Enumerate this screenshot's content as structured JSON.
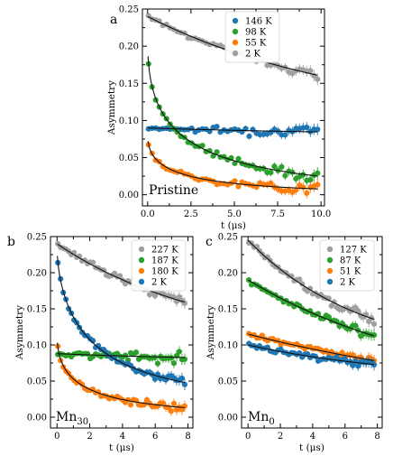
{
  "chart_data": [
    {
      "type": "scatter",
      "panel": "a",
      "annotation": "Pristine",
      "xlabel": "t (μs)",
      "ylabel": "Asymmetry",
      "xlim": [
        -0.3,
        10.2
      ],
      "ylim": [
        -0.015,
        0.25
      ],
      "xticks": [
        0.0,
        2.5,
        5.0,
        7.5,
        10.0
      ],
      "xtick_labels": [
        "0.0",
        "2.5",
        "5.0",
        "7.5",
        "10.0"
      ],
      "yticks": [
        0.0,
        0.05,
        0.1,
        0.15,
        0.2,
        0.25
      ],
      "ytick_labels": [
        "0.00",
        "0.05",
        "0.10",
        "0.15",
        "0.20",
        "0.25"
      ],
      "legend_position": "top-right",
      "series": [
        {
          "name": "146 K",
          "color": "#1f77b4",
          "model": {
            "type": "exp",
            "a0": 0.09,
            "b": 0.08,
            "lam": 0.08,
            "tmax": 9.8
          }
        },
        {
          "name": "98 K",
          "color": "#2ca02c",
          "model": {
            "type": "stretched",
            "a0": 0.205,
            "lam": 0.45,
            "beta": 0.5,
            "base": 0.0,
            "tmax": 9.8
          }
        },
        {
          "name": "55 K",
          "color": "#ff7f0e",
          "model": {
            "type": "stretched",
            "a0": 0.08,
            "lam": 0.55,
            "beta": 0.5,
            "base": 0.0,
            "tmax": 9.8
          }
        },
        {
          "name": "2 K",
          "color": "#a0a0a0",
          "model": {
            "type": "exp",
            "a0": 0.24,
            "b": 0.1,
            "lam": 0.085,
            "tmax": 9.8
          }
        }
      ]
    },
    {
      "type": "scatter",
      "panel": "b",
      "annotation": "Mn30",
      "annotation_base": "Mn",
      "annotation_sub": "30",
      "xlabel": "t (μs)",
      "ylabel": "Asymmetry",
      "xlim": [
        -0.4,
        8.3
      ],
      "ylim": [
        -0.015,
        0.25
      ],
      "xticks": [
        0,
        2,
        4,
        6,
        8
      ],
      "xtick_labels": [
        "0",
        "2",
        "4",
        "6",
        "8"
      ],
      "yticks": [
        0.0,
        0.05,
        0.1,
        0.15,
        0.2,
        0.25
      ],
      "ytick_labels": [
        "0.00",
        "0.05",
        "0.10",
        "0.15",
        "0.20",
        "0.25"
      ],
      "legend_position": "top-right",
      "series": [
        {
          "name": "227 K",
          "color": "#a0a0a0",
          "model": {
            "type": "exp",
            "a0": 0.24,
            "b": 0.1,
            "lam": 0.11,
            "tmax": 7.8
          }
        },
        {
          "name": "187 K",
          "color": "#2ca02c",
          "model": {
            "type": "exp",
            "a0": 0.088,
            "b": 0.078,
            "lam": 0.1,
            "tmax": 7.8
          }
        },
        {
          "name": "180 K",
          "color": "#ff7f0e",
          "model": {
            "type": "stretched",
            "a0": 0.115,
            "lam": 0.6,
            "beta": 0.5,
            "base": 0.0,
            "tmax": 7.8
          }
        },
        {
          "name": "2 K",
          "color": "#1f77b4",
          "model": {
            "type": "stretched",
            "a0": 0.235,
            "lam": 0.42,
            "beta": 0.6,
            "base": 0.02,
            "tmax": 7.8
          }
        }
      ]
    },
    {
      "type": "scatter",
      "panel": "c",
      "annotation": "Mn0",
      "annotation_base": "Mn",
      "annotation_sub": "0",
      "xlabel": "t (μs)",
      "ylabel": "Asymmetry",
      "xlim": [
        -0.4,
        8.3
      ],
      "ylim": [
        -0.015,
        0.25
      ],
      "xticks": [
        0,
        2,
        4,
        6,
        8
      ],
      "xtick_labels": [
        "0",
        "2",
        "4",
        "6",
        "8"
      ],
      "yticks": [
        0.0,
        0.05,
        0.1,
        0.15,
        0.2,
        0.25
      ],
      "ytick_labels": [
        "0.00",
        "0.05",
        "0.10",
        "0.15",
        "0.20",
        "0.25"
      ],
      "legend_position": "top-right",
      "series": [
        {
          "name": "127 K",
          "color": "#a0a0a0",
          "model": {
            "type": "exp",
            "a0": 0.245,
            "b": 0.08,
            "lam": 0.14,
            "tmax": 7.8
          }
        },
        {
          "name": "87 K",
          "color": "#2ca02c",
          "model": {
            "type": "exp",
            "a0": 0.19,
            "b": 0.03,
            "lam": 0.085,
            "tmax": 7.8
          }
        },
        {
          "name": "51 K",
          "color": "#ff7f0e",
          "model": {
            "type": "exp",
            "a0": 0.115,
            "b": 0.01,
            "lam": 0.055,
            "tmax": 7.8
          }
        },
        {
          "name": "2 K",
          "color": "#1f77b4",
          "model": {
            "type": "exp",
            "a0": 0.1,
            "b": 0.05,
            "lam": 0.1,
            "tmax": 7.8
          }
        }
      ]
    }
  ]
}
